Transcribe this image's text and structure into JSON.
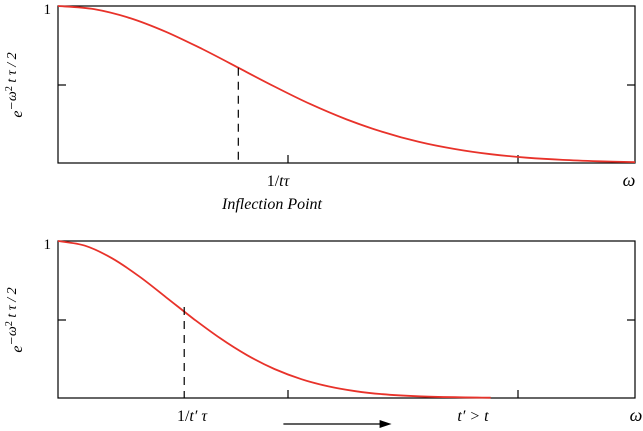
{
  "chart_data": [
    {
      "type": "line",
      "ylabel_base": "e",
      "ylabel_exponent": "−ω",
      "ylabel_exp_sup": "2",
      "ylabel_exp_rest": " t τ / 2",
      "ytick_top": "1",
      "marker_label_main": "1/",
      "marker_label_it": "tτ",
      "xaxis_end_label": "ω",
      "annotation": "Inflection Point",
      "xlim": [
        0,
        3.2
      ],
      "ylim": [
        0,
        1
      ],
      "series": [
        {
          "color": "#e8322a",
          "x": [
            0,
            0.2,
            0.4,
            0.6,
            0.8,
            1.0,
            1.2,
            1.4,
            1.6,
            1.8,
            2.0,
            2.2,
            2.4,
            2.6,
            2.8,
            3.0,
            3.2
          ],
          "y": [
            1,
            0.98,
            0.923,
            0.835,
            0.726,
            0.607,
            0.487,
            0.375,
            0.278,
            0.198,
            0.135,
            0.089,
            0.056,
            0.034,
            0.02,
            0.011,
            0.006
          ]
        }
      ],
      "inflection_x": 1.0,
      "inflection_y": 0.607,
      "grid": false
    },
    {
      "type": "line",
      "ylabel_base": "e",
      "ylabel_exponent": "−ω",
      "ylabel_exp_sup": "2",
      "ylabel_exp_rest": " t τ / 2",
      "ytick_top": "1",
      "marker_label_main": "1/",
      "marker_label_it": "t′ τ",
      "xaxis_end_label": "ω",
      "annotation": "t′ > t",
      "xlim": [
        0,
        3.2
      ],
      "ylim": [
        0,
        1
      ],
      "series": [
        {
          "color": "#e8322a",
          "x": [
            0,
            0.15,
            0.3,
            0.45,
            0.6,
            0.75,
            0.9,
            1.05,
            1.2,
            1.35,
            1.5,
            1.65,
            1.8,
            2.0,
            2.2,
            2.4
          ],
          "y": [
            1,
            0.97,
            0.89,
            0.775,
            0.641,
            0.506,
            0.38,
            0.272,
            0.185,
            0.12,
            0.074,
            0.043,
            0.024,
            0.011,
            0.005,
            0.002
          ]
        }
      ],
      "inflection_x": 0.7,
      "inflection_y": 0.58,
      "arrow_from": 1.25,
      "arrow_to": 1.85,
      "grid": false
    }
  ]
}
